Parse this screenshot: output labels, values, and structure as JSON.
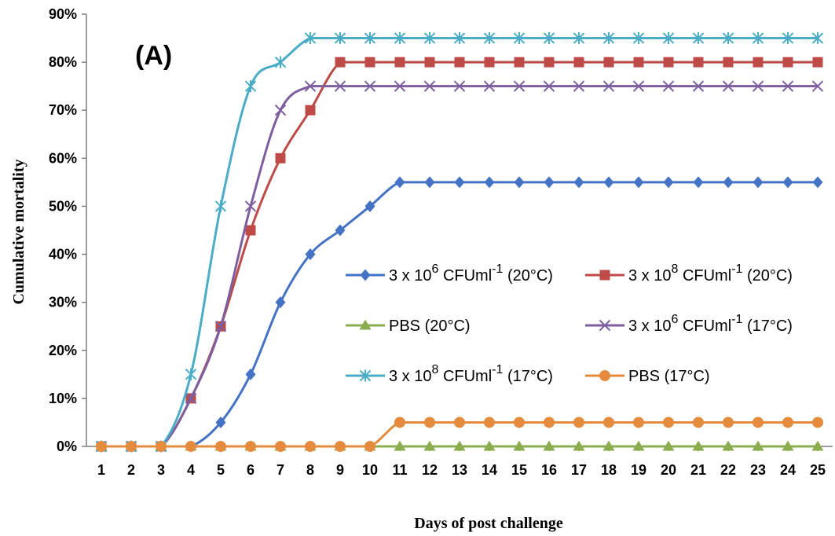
{
  "chart_data": {
    "type": "line",
    "panel_label": "(A)",
    "xlabel": "Days of post challenge",
    "ylabel": "Cumulative mortality",
    "x": [
      1,
      2,
      3,
      4,
      5,
      6,
      7,
      8,
      9,
      10,
      11,
      12,
      13,
      14,
      15,
      16,
      17,
      18,
      19,
      20,
      21,
      22,
      23,
      24,
      25
    ],
    "ylim": [
      0,
      90
    ],
    "yticks": [
      "0%",
      "10%",
      "20%",
      "30%",
      "40%",
      "50%",
      "60%",
      "70%",
      "80%",
      "90%"
    ],
    "grid": false,
    "legend_position": "center-right",
    "series": [
      {
        "legend": {
          "pre": "3 x 10",
          "sup": "6",
          "mid": " CFUml",
          "sup2": "-1",
          "post": " (20°C)"
        },
        "color": "#4472c4",
        "marker": "diamond",
        "values": [
          0,
          0,
          0,
          0,
          5,
          15,
          30,
          40,
          45,
          50,
          55,
          55,
          55,
          55,
          55,
          55,
          55,
          55,
          55,
          55,
          55,
          55,
          55,
          55,
          55
        ]
      },
      {
        "legend": {
          "pre": "3 x 10",
          "sup": "8",
          "mid": " CFUml",
          "sup2": "-1",
          "post": " (20°C)"
        },
        "color": "#be4b48",
        "marker": "square",
        "values": [
          0,
          0,
          0,
          10,
          25,
          45,
          60,
          70,
          80,
          80,
          80,
          80,
          80,
          80,
          80,
          80,
          80,
          80,
          80,
          80,
          80,
          80,
          80,
          80,
          80
        ]
      },
      {
        "legend": {
          "pre": "PBS (20°C)",
          "sup": "",
          "mid": "",
          "sup2": "",
          "post": ""
        },
        "color": "#8bad4f",
        "marker": "triangle",
        "values": [
          0,
          0,
          0,
          0,
          0,
          0,
          0,
          0,
          0,
          0,
          0,
          0,
          0,
          0,
          0,
          0,
          0,
          0,
          0,
          0,
          0,
          0,
          0,
          0,
          0
        ]
      },
      {
        "legend": {
          "pre": "3 x 10",
          "sup": "6",
          "mid": " CFUml",
          "sup2": "-1",
          "post": " (17°C)"
        },
        "color": "#7d5fa0",
        "marker": "x",
        "values": [
          0,
          0,
          0,
          10,
          25,
          50,
          70,
          75,
          75,
          75,
          75,
          75,
          75,
          75,
          75,
          75,
          75,
          75,
          75,
          75,
          75,
          75,
          75,
          75,
          75
        ]
      },
      {
        "legend": {
          "pre": "3 x 10",
          "sup": "8",
          "mid": " CFUml",
          "sup2": "-1",
          "post": " (17°C)"
        },
        "color": "#4aacc6",
        "marker": "asterisk",
        "values": [
          0,
          0,
          0,
          15,
          50,
          75,
          80,
          85,
          85,
          85,
          85,
          85,
          85,
          85,
          85,
          85,
          85,
          85,
          85,
          85,
          85,
          85,
          85,
          85,
          85
        ]
      },
      {
        "legend": {
          "pre": "PBS (17°C)",
          "sup": "",
          "mid": "",
          "sup2": "",
          "post": ""
        },
        "color": "#e58b3e",
        "marker": "circle",
        "values": [
          0,
          0,
          0,
          0,
          0,
          0,
          0,
          0,
          0,
          0,
          5,
          5,
          5,
          5,
          5,
          5,
          5,
          5,
          5,
          5,
          5,
          5,
          5,
          5,
          5
        ]
      }
    ]
  }
}
